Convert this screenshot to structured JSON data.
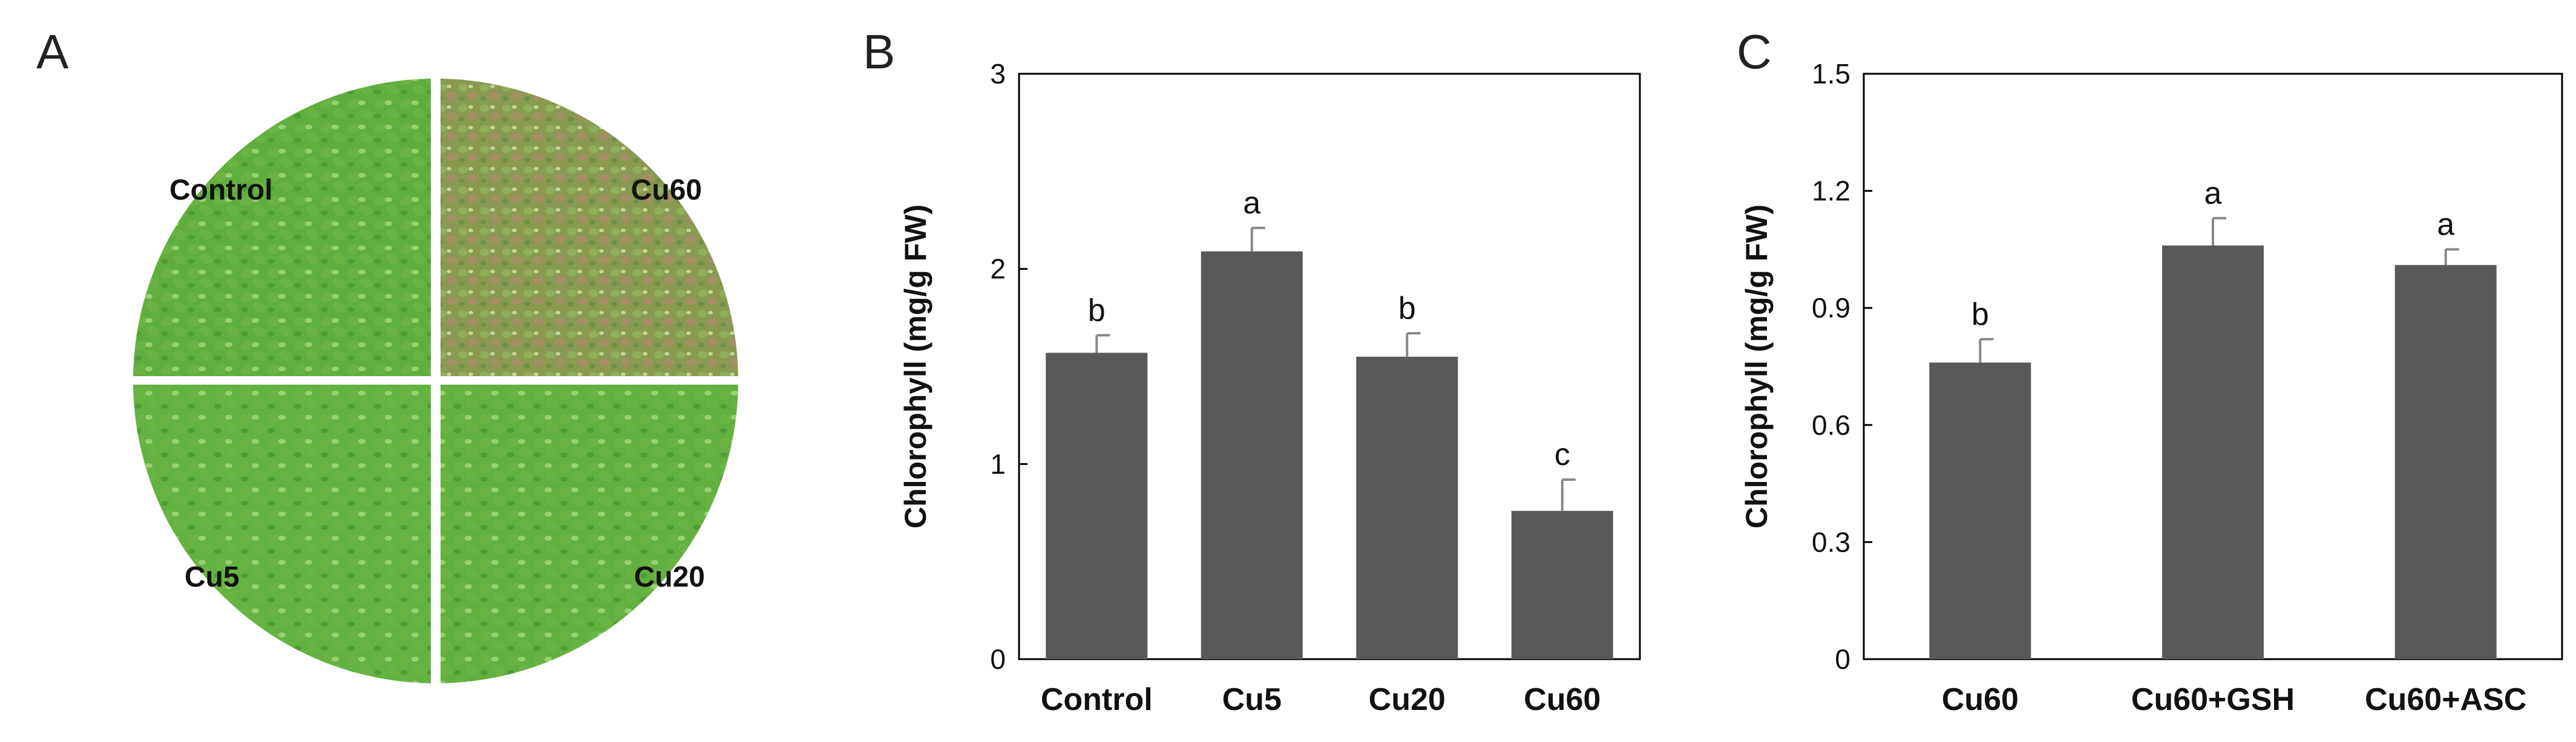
{
  "figure": {
    "panel_a": {
      "letter": "A",
      "quadrants": [
        {
          "label": "Control",
          "tint": "#5fae3e"
        },
        {
          "label": "Cu60",
          "tint": "#8a9a52"
        },
        {
          "label": "Cu5",
          "tint": "#63b342"
        },
        {
          "label": "Cu20",
          "tint": "#62b140"
        }
      ]
    },
    "panel_b": {
      "letter": "B"
    },
    "panel_c": {
      "letter": "C"
    }
  },
  "colors": {
    "bar": "#595959",
    "axis": "#000000"
  },
  "chart_data": [
    {
      "type": "bar",
      "title": "",
      "xlabel": "",
      "ylabel": "Chlorophyll (mg/g FW)",
      "categories": [
        "Control",
        "Cu5",
        "Cu20",
        "Cu60"
      ],
      "values": [
        1.57,
        2.09,
        1.55,
        0.76
      ],
      "errors": [
        0.09,
        0.12,
        0.12,
        0.16
      ],
      "significance": [
        "b",
        "a",
        "b",
        "c"
      ],
      "ylim": [
        0,
        3
      ],
      "yticks": [
        "0",
        "1",
        "2",
        "3"
      ],
      "grid": false
    },
    {
      "type": "bar",
      "title": "",
      "xlabel": "",
      "ylabel": "Chlorophyll (mg/g FW)",
      "categories": [
        "Cu60",
        "Cu60+GSH",
        "Cu60+ASC"
      ],
      "values": [
        0.76,
        1.06,
        1.01
      ],
      "errors": [
        0.06,
        0.07,
        0.04
      ],
      "significance": [
        "b",
        "a",
        "a"
      ],
      "ylim": [
        0,
        1.5
      ],
      "yticks": [
        "0",
        "0.3",
        "0.6",
        "0.9",
        "1.2",
        "1.5"
      ],
      "grid": false
    }
  ]
}
